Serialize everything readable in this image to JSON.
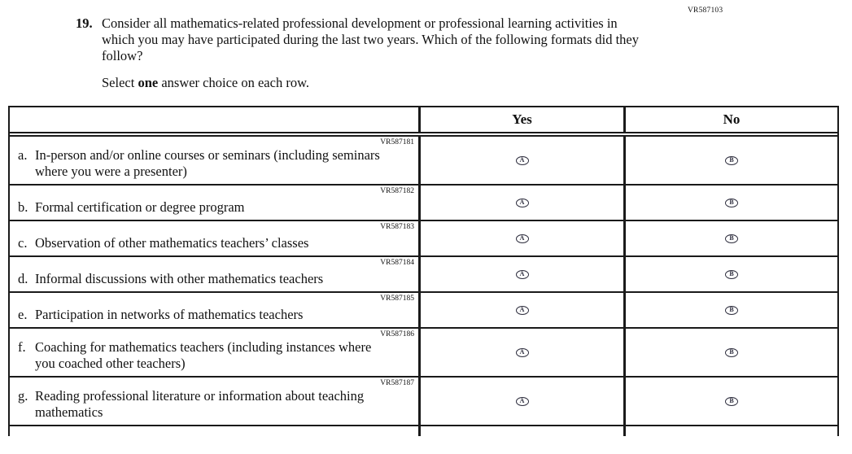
{
  "page": {
    "form_code": "VR587103"
  },
  "question": {
    "number": "19.",
    "text": "Consider all mathematics-related professional development or professional learning activities in which you may have participated during the last two years. Which of the following formats did they follow?",
    "instruction": {
      "prefix": "Select ",
      "bold": "one",
      "suffix": " answer choice on each row."
    }
  },
  "table": {
    "header": {
      "yes": "Yes",
      "no": "No"
    },
    "options": [
      {
        "label": "Yes",
        "letter": "A"
      },
      {
        "label": "No",
        "letter": "B"
      }
    ],
    "rows": [
      {
        "letter": "a.",
        "code": "VR587181",
        "text": "In-person and/or online courses or seminars (including seminars where you were a presenter)"
      },
      {
        "letter": "b.",
        "code": "VR587182",
        "text": "Formal certification or degree program"
      },
      {
        "letter": "c.",
        "code": "VR587183",
        "text": "Observation of other mathematics teachers’ classes"
      },
      {
        "letter": "d.",
        "code": "VR587184",
        "text": "Informal discussions with other mathematics teachers"
      },
      {
        "letter": "e.",
        "code": "VR587185",
        "text": "Participation in networks of mathematics teachers"
      },
      {
        "letter": "f.",
        "code": "VR587186",
        "text": "Coaching for mathematics teachers (including instances where you coached other teachers)"
      },
      {
        "letter": "g.",
        "code": "VR587187",
        "text": "Reading professional literature or information about teaching mathematics"
      }
    ]
  },
  "colors": {
    "text": "#111111",
    "border": "#1a1a1a",
    "bubble": "#2e2e3e"
  }
}
